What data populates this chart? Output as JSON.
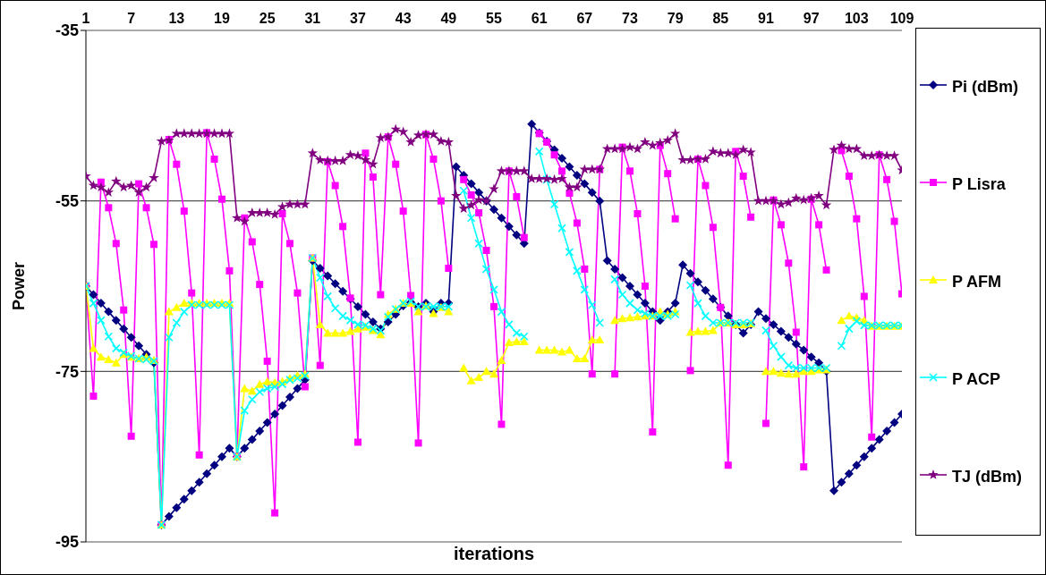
{
  "chart_data": {
    "type": "line",
    "xlabel": "iterations",
    "ylabel": "Power",
    "categories": [
      "1",
      null,
      null,
      null,
      null,
      null,
      "7",
      null,
      null,
      null,
      null,
      null,
      "13",
      null,
      null,
      null,
      null,
      null,
      "19",
      null,
      null,
      null,
      null,
      null,
      "25",
      null,
      null,
      null,
      null,
      null,
      "31",
      null,
      null,
      null,
      null,
      null,
      "37",
      null,
      null,
      null,
      null,
      null,
      "43",
      null,
      null,
      null,
      null,
      null,
      "49",
      null,
      null,
      null,
      null,
      null,
      "55",
      null,
      null,
      null,
      null,
      null,
      "61",
      null,
      null,
      null,
      null,
      null,
      "67",
      null,
      null,
      null,
      null,
      null,
      "73",
      null,
      null,
      null,
      null,
      null,
      "79",
      null,
      null,
      null,
      null,
      null,
      "85",
      null,
      null,
      null,
      null,
      null,
      "91",
      null,
      null,
      null,
      null,
      null,
      "97",
      null,
      null,
      null,
      null,
      null,
      "103",
      null,
      null,
      null,
      null,
      null,
      "109"
    ],
    "series": [
      {
        "name": "Pi (dBm)",
        "color": "#000080",
        "marker": "diamond",
        "values": [
          -65,
          -66,
          -67,
          -68,
          -69,
          -70,
          -71,
          -72,
          -73,
          -74,
          -93,
          -92,
          -91,
          -90,
          -89,
          -88,
          -87,
          -86,
          -85,
          -84,
          -85,
          -84,
          -83,
          -82,
          -81,
          -80,
          -79,
          -78,
          -77,
          -76,
          -62,
          -62.9,
          -63.8,
          -64.7,
          -65.6,
          -66.5,
          -67.4,
          -68.3,
          -69.2,
          -70,
          -69.2,
          -68.3,
          -67.3,
          -66.9,
          -67.4,
          -67,
          -68,
          -67,
          -67,
          -51,
          -52,
          -53,
          -54,
          -55,
          -56,
          -57,
          -58,
          -59,
          -60,
          -46,
          -47,
          -48,
          -49,
          -50,
          -51,
          -52,
          -53,
          -54,
          -55,
          -62,
          -63,
          -64,
          -65,
          -66,
          -67,
          -68,
          -69,
          -68,
          -67,
          -62.5,
          -63.5,
          -64.5,
          -65.5,
          -66.5,
          -67.5,
          -68.5,
          -69.5,
          -70.5,
          -69.5,
          -68,
          -68.8,
          -69.5,
          -70.3,
          -71,
          -71.8,
          -72.5,
          -73.3,
          -74,
          -75,
          -89,
          -88,
          -87,
          -86,
          -85,
          -84,
          -83,
          -82,
          -81,
          -80
        ]
      },
      {
        "name": "P Lisra",
        "color": "#ff00ff",
        "marker": "square",
        "values": [
          -65,
          -77.9,
          -52.8,
          -55.8,
          -60,
          -67.8,
          -82.6,
          -53,
          -55.8,
          -60.1,
          -93,
          -47.8,
          -50.7,
          -56.2,
          -65.8,
          -84.8,
          -47,
          -50.1,
          -54.8,
          -63.2,
          -85,
          -57,
          -59.8,
          -64.8,
          -73.8,
          -91.6,
          -56.5,
          -60,
          -65.8,
          -76.8,
          -61.7,
          -74.3,
          -50.4,
          -53.2,
          -58,
          -66.4,
          -83.3,
          -49.4,
          -52.2,
          -66,
          -47.5,
          -50.7,
          -56.2,
          -66.1,
          -83.4,
          -47.2,
          -50.1,
          -55,
          -62.9,
          null,
          -52.5,
          -54.3,
          -56.4,
          -60.8,
          -67.4,
          -81.2,
          -51.5,
          -54.5,
          -59.3,
          null,
          -47.1,
          -48.1,
          -49.6,
          -51.5,
          -54.1,
          -57.6,
          -63,
          -75.3,
          -51.3,
          null,
          -75.3,
          -48.7,
          -51.5,
          -56.5,
          -65,
          -82.1,
          -48.5,
          -51.8,
          -57.1,
          null,
          -74.9,
          -50.1,
          -53.2,
          -58.1,
          -67.5,
          -86,
          -49.2,
          -52.1,
          -56.9,
          null,
          -81.1,
          -54.9,
          -57.8,
          -62.3,
          -70.4,
          -86.2,
          -54.8,
          -57.8,
          -63.1,
          null,
          -49.1,
          -52.1,
          -57.1,
          -66.2,
          -82.7,
          -49.6,
          -52.5,
          -57.4,
          -65.9
        ]
      },
      {
        "name": "P AFM",
        "color": "#ffff00",
        "marker": "triangle",
        "values": [
          -65,
          -72.3,
          -73.3,
          -73.6,
          -74,
          -73,
          -73.3,
          -73.5,
          -73.3,
          -73.7,
          -93,
          -68,
          -67.5,
          -67,
          -67,
          -67,
          -67,
          -67,
          -67,
          -67,
          -85,
          -77,
          -77.3,
          -76.5,
          -76.2,
          -76.3,
          -76.2,
          -75.8,
          -75.5,
          -75.3,
          -61.7,
          -69.5,
          -70.5,
          -70.5,
          -70.5,
          -70.3,
          -70,
          -69.8,
          -70.2,
          -70.7,
          -68.3,
          -67.7,
          -67,
          -67,
          -68,
          -67.3,
          -68.2,
          -67.5,
          -68,
          null,
          -74.6,
          -76.1,
          -75.7,
          -75,
          -75.3,
          -73.7,
          -71.6,
          -71.5,
          -71.5,
          null,
          -72.5,
          -72.5,
          -72.5,
          -72.7,
          -72.5,
          -73.5,
          -73.5,
          -71.3,
          -71.3,
          null,
          -69,
          -68.8,
          -68.7,
          -68.6,
          -68.5,
          -68.5,
          -68,
          -68.3,
          -68,
          null,
          -70.4,
          -70.3,
          -70.3,
          -70.2,
          -69.3,
          -69.3,
          -69.5,
          -69.5,
          -69.4,
          null,
          -75,
          -75,
          -75.2,
          -75.3,
          -75.3,
          -75,
          -75,
          -74.8,
          -74.8,
          null,
          -69,
          -68.5,
          -68.7,
          -69,
          -69.7,
          -69.7,
          -69.7,
          -69.7,
          -69.7
        ]
      },
      {
        "name": "P ACP",
        "color": "#00ffff",
        "marker": "cross",
        "values": [
          -65,
          -67,
          -69,
          -70.9,
          -72.3,
          -72.8,
          -73.2,
          -73.5,
          -73.6,
          -73.8,
          -93,
          -71,
          -69.3,
          -68,
          -67.2,
          -67.2,
          -67.2,
          -67.2,
          -67.2,
          -67.2,
          -85,
          -79.6,
          -78.3,
          -77.4,
          -77,
          -76.8,
          -76.5,
          -76,
          -75.8,
          -75.5,
          -61.7,
          -64,
          -66.2,
          -67.6,
          -68.5,
          -69,
          -69.5,
          -69.6,
          -70,
          -70.2,
          -68.6,
          -67.7,
          -67,
          -66.8,
          -67.4,
          -67.4,
          -67.4,
          -67.4,
          -67.4,
          null,
          -53.8,
          -57,
          -60,
          -63,
          -65.4,
          -68,
          -69.5,
          -70.5,
          -70.9,
          null,
          -49.2,
          -52.5,
          -55.4,
          -58.2,
          -61,
          -63.2,
          -65.4,
          -67.2,
          -69.3,
          null,
          -64.2,
          -66,
          -67,
          -67.8,
          -68.2,
          -68.5,
          -68.5,
          -68.5,
          -68.3,
          null,
          -64.9,
          -67,
          -68.5,
          -69.3,
          -69.3,
          -69.3,
          -69.3,
          -69.3,
          -69.3,
          null,
          -70.2,
          -72,
          -73.3,
          -74.3,
          -74.6,
          -74.6,
          -74.6,
          -74.6,
          -74.6,
          null,
          -72,
          -70,
          -69.1,
          -69.6,
          -69.6,
          -69.6,
          -69.6,
          -69.6,
          -69.6
        ]
      },
      {
        "name": "TJ (dBm)",
        "color": "#800080",
        "marker": "star",
        "values": [
          -52.1,
          -53.2,
          -53.4,
          -54,
          -52.7,
          -53.4,
          -53.2,
          -54,
          -53.4,
          -52.3,
          -48,
          -47.9,
          -47.1,
          -47.1,
          -47.1,
          -47.1,
          -47.1,
          -47.1,
          -47.1,
          -47.1,
          -57,
          -57.4,
          -56.4,
          -56.4,
          -56.4,
          -56.6,
          -55.7,
          -55.4,
          -55.4,
          -55.4,
          -49.4,
          -50.2,
          -50.3,
          -50.3,
          -50.3,
          -49.6,
          -49.7,
          -50.2,
          -50.7,
          -47.6,
          -47.5,
          -46.6,
          -46.9,
          -48.1,
          -47.3,
          -47.2,
          -47.2,
          -48,
          -48.1,
          -54.4,
          -55.9,
          -55.5,
          -54.9,
          -55,
          -53.6,
          -51.5,
          -51.5,
          -51.5,
          -51.5,
          -52.4,
          -52.4,
          -52.4,
          -52.5,
          -52.4,
          -53.4,
          -53.4,
          -51.3,
          -51.3,
          -51.3,
          -48.9,
          -48.9,
          -48.9,
          -48.7,
          -48.9,
          -48.1,
          -48.5,
          -48.2,
          -47.9,
          -47.1,
          -50.2,
          -50.2,
          -50.1,
          -50.1,
          -49.2,
          -49.4,
          -49.4,
          -49.6,
          -49,
          -49.3,
          -55,
          -55,
          -55,
          -55.4,
          -55.2,
          -54.7,
          -54.9,
          -54.7,
          -54.4,
          -55.5,
          -49,
          -48.5,
          -48.9,
          -48.9,
          -49.7,
          -49.7,
          -49.6,
          -49.7,
          -49.7,
          -51.4
        ]
      }
    ],
    "ylim": [
      -95,
      -35
    ],
    "yticks": [
      -35,
      -55,
      -75,
      -95
    ],
    "grid": "y",
    "legend": "right",
    "line_style": "solid"
  }
}
